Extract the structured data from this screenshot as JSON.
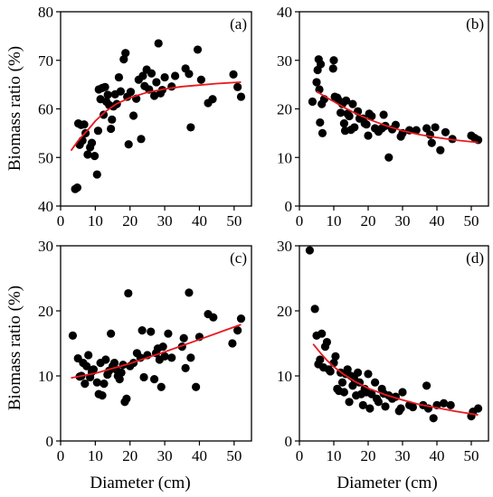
{
  "chart_data": [
    {
      "type": "scatter",
      "panel_label": "(a)",
      "xlabel": "",
      "ylabel": "Biomass ratio (%)",
      "xlim": [
        0,
        55
      ],
      "ylim": [
        40,
        80
      ],
      "xticks": [
        0,
        10,
        20,
        30,
        40,
        50
      ],
      "yticks": [
        40,
        50,
        60,
        70,
        80
      ],
      "xtick_labels": [
        "0",
        "10",
        "20",
        "30",
        "40",
        "50"
      ],
      "ytick_labels": [
        "40",
        "50",
        "60",
        "70",
        "80"
      ],
      "grid": false,
      "point_color": "#000000",
      "fit_color": "#e8191f",
      "points": [
        [
          4.2,
          43.5
        ],
        [
          4.8,
          43.8
        ],
        [
          5.1,
          57.0
        ],
        [
          5.5,
          52.6
        ],
        [
          5.9,
          56.7
        ],
        [
          6.3,
          53.5
        ],
        [
          6.8,
          56.8
        ],
        [
          7.2,
          55.0
        ],
        [
          7.8,
          50.6
        ],
        [
          8.5,
          52.1
        ],
        [
          9.0,
          53.0
        ],
        [
          9.8,
          50.3
        ],
        [
          10.5,
          46.5
        ],
        [
          10.8,
          55.5
        ],
        [
          11.0,
          64.0
        ],
        [
          11.5,
          62.0
        ],
        [
          12.0,
          64.3
        ],
        [
          12.4,
          58.8
        ],
        [
          12.8,
          64.5
        ],
        [
          13.2,
          61.5
        ],
        [
          13.6,
          62.9
        ],
        [
          14.0,
          60.8
        ],
        [
          14.5,
          55.9
        ],
        [
          14.8,
          57.8
        ],
        [
          15.2,
          60.5
        ],
        [
          15.7,
          63.0
        ],
        [
          16.2,
          61.0
        ],
        [
          16.8,
          66.5
        ],
        [
          17.3,
          63.6
        ],
        [
          18.2,
          70.2
        ],
        [
          18.7,
          71.5
        ],
        [
          19.2,
          62.5
        ],
        [
          19.6,
          52.7
        ],
        [
          20.2,
          63.5
        ],
        [
          21.0,
          58.6
        ],
        [
          21.8,
          62.1
        ],
        [
          22.5,
          66.0
        ],
        [
          23.2,
          53.8
        ],
        [
          23.7,
          66.8
        ],
        [
          24.2,
          64.7
        ],
        [
          24.8,
          68.1
        ],
        [
          25.5,
          64.0
        ],
        [
          26.2,
          67.3
        ],
        [
          27.0,
          62.7
        ],
        [
          27.6,
          65.5
        ],
        [
          28.2,
          73.5
        ],
        [
          28.8,
          63.2
        ],
        [
          29.3,
          63.9
        ],
        [
          30.0,
          66.5
        ],
        [
          32.0,
          64.6
        ],
        [
          33.0,
          66.8
        ],
        [
          36.0,
          68.3
        ],
        [
          37.0,
          67.2
        ],
        [
          37.5,
          56.2
        ],
        [
          39.5,
          72.2
        ],
        [
          40.5,
          66.0
        ],
        [
          42.5,
          61.2
        ],
        [
          43.8,
          62.0
        ],
        [
          49.8,
          67.1
        ],
        [
          51.0,
          64.5
        ],
        [
          52.0,
          62.5
        ]
      ],
      "fit": [
        [
          3,
          51.4
        ],
        [
          5,
          53.4
        ],
        [
          8,
          55.8
        ],
        [
          10,
          57.5
        ],
        [
          13,
          59.5
        ],
        [
          16,
          61.0
        ],
        [
          20,
          62.3
        ],
        [
          25,
          63.4
        ],
        [
          30,
          64.1
        ],
        [
          35,
          64.6
        ],
        [
          40,
          64.9
        ],
        [
          45,
          65.2
        ],
        [
          52,
          65.5
        ]
      ]
    },
    {
      "type": "scatter",
      "panel_label": "(b)",
      "xlabel": "",
      "ylabel": "",
      "xlim": [
        0,
        55
      ],
      "ylim": [
        0,
        40
      ],
      "xticks": [
        0,
        10,
        20,
        30,
        40,
        50
      ],
      "yticks": [
        0,
        10,
        20,
        30,
        40
      ],
      "xtick_labels": [
        "0",
        "10",
        "20",
        "30",
        "40",
        "50"
      ],
      "ytick_labels": [
        "0",
        "10",
        "20",
        "30",
        "40"
      ],
      "grid": false,
      "point_color": "#000000",
      "fit_color": "#e8191f",
      "points": [
        [
          3.8,
          21.5
        ],
        [
          5.0,
          25.5
        ],
        [
          5.3,
          28.0
        ],
        [
          5.6,
          30.2
        ],
        [
          5.8,
          24.0
        ],
        [
          6.0,
          17.2
        ],
        [
          6.2,
          29.2
        ],
        [
          6.5,
          21.0
        ],
        [
          6.7,
          15.0
        ],
        [
          7.2,
          22.0
        ],
        [
          9.8,
          28.3
        ],
        [
          10.0,
          30.0
        ],
        [
          10.3,
          22.5
        ],
        [
          11.0,
          22.3
        ],
        [
          11.5,
          21.7
        ],
        [
          12.0,
          19.2
        ],
        [
          12.5,
          21.0
        ],
        [
          13.0,
          17.0
        ],
        [
          13.3,
          15.5
        ],
        [
          13.6,
          21.7
        ],
        [
          14.0,
          19.0
        ],
        [
          14.5,
          18.5
        ],
        [
          15.0,
          15.7
        ],
        [
          15.5,
          21.0
        ],
        [
          16.0,
          16.2
        ],
        [
          17.0,
          19.5
        ],
        [
          17.5,
          18.0
        ],
        [
          18.5,
          18.0
        ],
        [
          19.0,
          17.0
        ],
        [
          19.5,
          16.8
        ],
        [
          20.0,
          14.5
        ],
        [
          20.3,
          19.0
        ],
        [
          21.0,
          18.5
        ],
        [
          22.0,
          16.0
        ],
        [
          23.0,
          15.3
        ],
        [
          24.0,
          16.0
        ],
        [
          24.5,
          18.8
        ],
        [
          25.0,
          16.5
        ],
        [
          26.0,
          10.0
        ],
        [
          27.0,
          15.8
        ],
        [
          28.0,
          16.7
        ],
        [
          29.5,
          14.3
        ],
        [
          30.0,
          15.0
        ],
        [
          32.0,
          15.6
        ],
        [
          34.0,
          15.6
        ],
        [
          37.0,
          16.0
        ],
        [
          38.0,
          14.7
        ],
        [
          38.5,
          13.0
        ],
        [
          39.5,
          16.2
        ],
        [
          41.0,
          11.5
        ],
        [
          42.5,
          15.2
        ],
        [
          44.5,
          13.8
        ],
        [
          50.0,
          14.5
        ],
        [
          51.0,
          14.0
        ],
        [
          52.0,
          13.6
        ]
      ],
      "fit": [
        [
          5,
          23.6
        ],
        [
          8,
          22.3
        ],
        [
          10,
          21.5
        ],
        [
          13,
          20.3
        ],
        [
          16,
          19.2
        ],
        [
          20,
          17.9
        ],
        [
          25,
          16.6
        ],
        [
          30,
          15.5
        ],
        [
          35,
          14.7
        ],
        [
          40,
          14.1
        ],
        [
          45,
          13.6
        ],
        [
          52,
          13.1
        ]
      ]
    },
    {
      "type": "scatter",
      "panel_label": "(c)",
      "xlabel": "Diameter (cm)",
      "ylabel": "Biomass ratio (%)",
      "xlim": [
        0,
        55
      ],
      "ylim": [
        0,
        30
      ],
      "xticks": [
        0,
        10,
        20,
        30,
        40,
        50
      ],
      "yticks": [
        0,
        10,
        20,
        30
      ],
      "xtick_labels": [
        "0",
        "10",
        "20",
        "30",
        "40",
        "50"
      ],
      "ytick_labels": [
        "0",
        "10",
        "20",
        "30"
      ],
      "grid": false,
      "point_color": "#000000",
      "fit_color": "#e8191f",
      "points": [
        [
          3.5,
          16.2
        ],
        [
          5.0,
          12.7
        ],
        [
          5.5,
          9.9
        ],
        [
          6.0,
          10.0
        ],
        [
          6.5,
          12.0
        ],
        [
          7.0,
          8.8
        ],
        [
          7.5,
          11.5
        ],
        [
          8.0,
          13.2
        ],
        [
          8.5,
          9.8
        ],
        [
          9.0,
          10.6
        ],
        [
          9.5,
          11.0
        ],
        [
          10.5,
          9.0
        ],
        [
          11.0,
          7.2
        ],
        [
          11.5,
          12.0
        ],
        [
          12.0,
          7.0
        ],
        [
          12.5,
          8.8
        ],
        [
          13.0,
          12.5
        ],
        [
          13.5,
          10.2
        ],
        [
          14.0,
          10.8
        ],
        [
          14.5,
          16.5
        ],
        [
          15.0,
          11.5
        ],
        [
          15.5,
          12.0
        ],
        [
          16.0,
          11.0
        ],
        [
          16.5,
          10.0
        ],
        [
          17.0,
          9.5
        ],
        [
          17.5,
          10.5
        ],
        [
          18.0,
          11.7
        ],
        [
          18.5,
          6.0
        ],
        [
          19.0,
          6.5
        ],
        [
          19.5,
          22.7
        ],
        [
          20.0,
          11.5
        ],
        [
          21.0,
          12.0
        ],
        [
          22.0,
          13.5
        ],
        [
          23.0,
          12.8
        ],
        [
          23.5,
          17.0
        ],
        [
          24.0,
          9.8
        ],
        [
          25.0,
          13.2
        ],
        [
          26.0,
          16.8
        ],
        [
          27.0,
          9.5
        ],
        [
          27.5,
          13.5
        ],
        [
          28.0,
          14.2
        ],
        [
          28.5,
          12.5
        ],
        [
          29.0,
          8.3
        ],
        [
          29.5,
          14.5
        ],
        [
          30.0,
          13.0
        ],
        [
          31.0,
          16.5
        ],
        [
          32.0,
          12.8
        ],
        [
          35.0,
          14.5
        ],
        [
          35.5,
          15.8
        ],
        [
          36.0,
          11.2
        ],
        [
          37.0,
          22.8
        ],
        [
          37.5,
          12.8
        ],
        [
          39.0,
          8.3
        ],
        [
          40.0,
          16.0
        ],
        [
          42.5,
          19.5
        ],
        [
          44.0,
          19.0
        ],
        [
          49.5,
          15.0
        ],
        [
          51.0,
          17.0
        ],
        [
          52.0,
          18.8
        ]
      ],
      "fit": [
        [
          3,
          9.7
        ],
        [
          10,
          10.4
        ],
        [
          20,
          11.9
        ],
        [
          30,
          13.7
        ],
        [
          40,
          15.6
        ],
        [
          52,
          17.9
        ]
      ]
    },
    {
      "type": "scatter",
      "panel_label": "(d)",
      "xlabel": "Diameter (cm)",
      "ylabel": "",
      "xlim": [
        0,
        55
      ],
      "ylim": [
        0,
        30
      ],
      "xticks": [
        0,
        10,
        20,
        30,
        40,
        50
      ],
      "yticks": [
        0,
        10,
        20,
        30
      ],
      "xtick_labels": [
        "0",
        "10",
        "20",
        "30",
        "40",
        "50"
      ],
      "ytick_labels": [
        "0",
        "10",
        "20",
        "30"
      ],
      "grid": false,
      "point_color": "#000000",
      "fit_color": "#e8191f",
      "points": [
        [
          3.0,
          29.3
        ],
        [
          4.5,
          20.3
        ],
        [
          5.0,
          16.2
        ],
        [
          5.5,
          11.8
        ],
        [
          6.0,
          12.5
        ],
        [
          6.5,
          16.5
        ],
        [
          7.0,
          11.3
        ],
        [
          7.5,
          14.5
        ],
        [
          8.0,
          15.2
        ],
        [
          8.5,
          11.0
        ],
        [
          9.0,
          10.7
        ],
        [
          10.0,
          12.0
        ],
        [
          10.5,
          13.0
        ],
        [
          11.0,
          8.0
        ],
        [
          11.5,
          7.7
        ],
        [
          12.0,
          10.5
        ],
        [
          12.5,
          9.0
        ],
        [
          13.0,
          7.5
        ],
        [
          13.5,
          10.3
        ],
        [
          14.0,
          11.0
        ],
        [
          14.5,
          6.0
        ],
        [
          15.0,
          10.0
        ],
        [
          15.5,
          8.5
        ],
        [
          16.0,
          9.5
        ],
        [
          16.5,
          7.0
        ],
        [
          17.0,
          10.5
        ],
        [
          17.5,
          9.0
        ],
        [
          18.0,
          7.2
        ],
        [
          18.5,
          5.5
        ],
        [
          19.0,
          8.0
        ],
        [
          19.5,
          7.5
        ],
        [
          20.0,
          10.3
        ],
        [
          20.5,
          5.0
        ],
        [
          21.0,
          7.2
        ],
        [
          22.0,
          9.0
        ],
        [
          22.5,
          6.5
        ],
        [
          23.0,
          6.0
        ],
        [
          24.0,
          8.0
        ],
        [
          24.5,
          7.3
        ],
        [
          25.0,
          5.3
        ],
        [
          26.0,
          7.0
        ],
        [
          27.0,
          6.5
        ],
        [
          28.0,
          6.8
        ],
        [
          29.0,
          4.6
        ],
        [
          29.5,
          5.0
        ],
        [
          30.0,
          7.5
        ],
        [
          32.0,
          5.5
        ],
        [
          33.0,
          5.2
        ],
        [
          36.0,
          5.5
        ],
        [
          37.0,
          8.5
        ],
        [
          37.5,
          5.0
        ],
        [
          39.0,
          3.5
        ],
        [
          40.0,
          5.5
        ],
        [
          42.0,
          5.8
        ],
        [
          44.0,
          5.5
        ],
        [
          50.0,
          3.8
        ],
        [
          50.5,
          4.5
        ],
        [
          52.0,
          5.0
        ]
      ],
      "fit": [
        [
          4,
          14.9
        ],
        [
          6,
          13.6
        ],
        [
          8,
          12.4
        ],
        [
          10,
          11.4
        ],
        [
          13,
          10.2
        ],
        [
          16,
          9.2
        ],
        [
          20,
          8.1
        ],
        [
          25,
          7.1
        ],
        [
          30,
          6.3
        ],
        [
          35,
          5.6
        ],
        [
          40,
          5.1
        ],
        [
          45,
          4.6
        ],
        [
          52,
          4.0
        ]
      ]
    }
  ]
}
